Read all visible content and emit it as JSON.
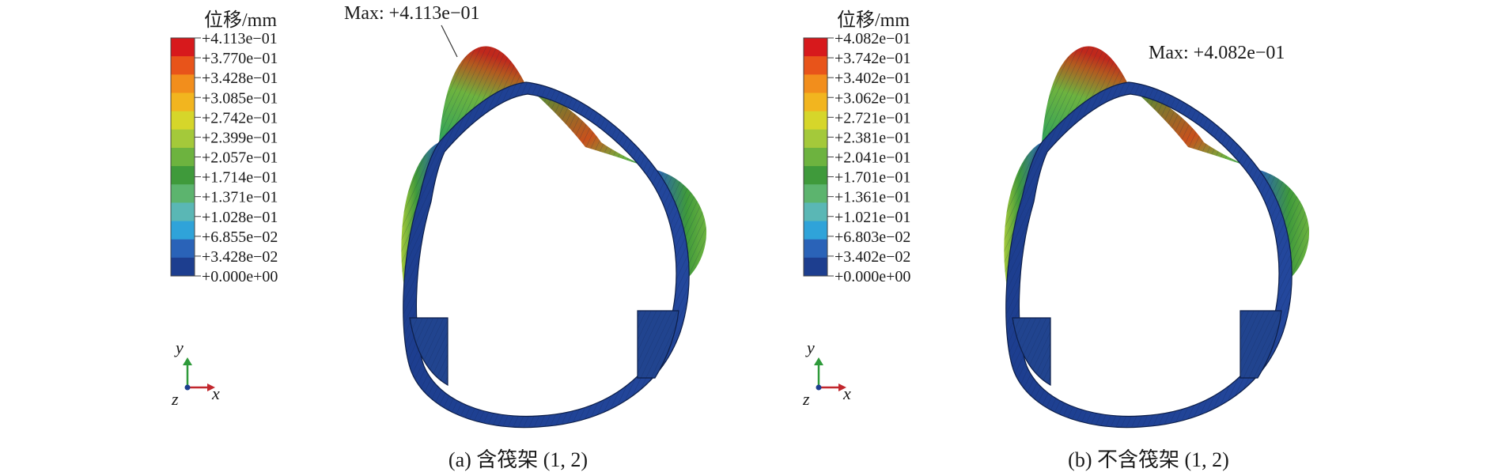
{
  "panels": [
    {
      "legend_title": "位移/mm",
      "legend_colors": [
        "#d7191c",
        "#e8541a",
        "#f28e1c",
        "#f2b51f",
        "#d6d62a",
        "#a4c93a",
        "#6db33f",
        "#3f9a3b",
        "#5cb46e",
        "#5ab7b5",
        "#2fa3d9",
        "#2a63b8",
        "#1d3e8f"
      ],
      "legend_values": [
        "+4.113e−01",
        "+3.770e−01",
        "+3.428e−01",
        "+3.085e−01",
        "+2.742e−01",
        "+2.399e−01",
        "+2.057e−01",
        "+1.714e−01",
        "+1.371e−01",
        "+1.028e−01",
        "+6.855e−02",
        "+3.428e−02",
        "+0.000e+00"
      ],
      "max_label": "Max: +4.113e−01",
      "axis_y": "y",
      "axis_x": "x",
      "axis_z": "z",
      "caption": "(a) 含筏架 (1, 2)"
    },
    {
      "legend_title": "位移/mm",
      "legend_colors": [
        "#d7191c",
        "#e8541a",
        "#f28e1c",
        "#f2b51f",
        "#d6d62a",
        "#a4c93a",
        "#6db33f",
        "#3f9a3b",
        "#5cb46e",
        "#5ab7b5",
        "#2fa3d9",
        "#2a63b8",
        "#1d3e8f"
      ],
      "legend_values": [
        "+4.082e−01",
        "+3.742e−01",
        "+3.402e−01",
        "+3.062e−01",
        "+2.721e−01",
        "+2.381e−01",
        "+2.041e−01",
        "+1.701e−01",
        "+1.361e−01",
        "+1.021e−01",
        "+6.803e−02",
        "+3.402e−02",
        "+0.000e+00"
      ],
      "max_label": "Max: +4.082e−01",
      "axis_y": "y",
      "axis_x": "x",
      "axis_z": "z",
      "caption": "(b) 不含筏架 (1, 2)"
    }
  ]
}
